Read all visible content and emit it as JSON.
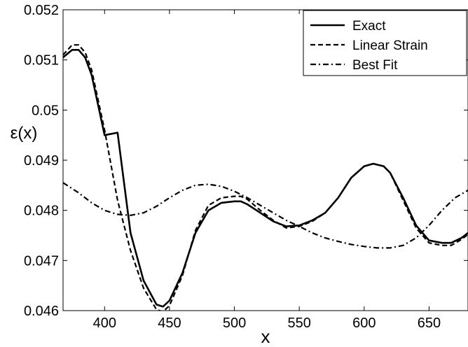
{
  "chart_data": {
    "type": "line",
    "xlabel": "x",
    "ylabel": "ε(x)",
    "xlim": [
      368,
      680
    ],
    "ylim": [
      0.046,
      0.052
    ],
    "x_ticks": [
      400,
      450,
      500,
      550,
      600,
      650
    ],
    "y_ticks": [
      0.046,
      0.047,
      0.048,
      0.049,
      0.05,
      0.051,
      0.052
    ],
    "grid": false,
    "legend_position": "top-right",
    "series": [
      {
        "name": "Exact",
        "style": "solid",
        "x": [
          368,
          375,
          380,
          385,
          390,
          400,
          410,
          420,
          430,
          440,
          445,
          450,
          460,
          470,
          480,
          490,
          500,
          505,
          510,
          520,
          530,
          540,
          550,
          560,
          570,
          580,
          590,
          600,
          607,
          615,
          620,
          630,
          640,
          650,
          660,
          667,
          675,
          680
        ],
        "y": [
          0.05105,
          0.0512,
          0.0512,
          0.05105,
          0.0507,
          0.0495,
          0.04955,
          0.04755,
          0.0466,
          0.04612,
          0.04608,
          0.0462,
          0.04675,
          0.04755,
          0.048,
          0.04815,
          0.04818,
          0.04818,
          0.04812,
          0.04795,
          0.04778,
          0.04768,
          0.0477,
          0.0478,
          0.04795,
          0.04825,
          0.04865,
          0.04888,
          0.04893,
          0.04888,
          0.04875,
          0.04825,
          0.0477,
          0.0474,
          0.04735,
          0.04735,
          0.04745,
          0.04755
        ]
      },
      {
        "name": "Linear Strain",
        "style": "dashed",
        "x": [
          368,
          375,
          380,
          385,
          390,
          400,
          410,
          420,
          430,
          440,
          445,
          450,
          460,
          470,
          480,
          490,
          500,
          505,
          510,
          520,
          530,
          540,
          550,
          560,
          570,
          580,
          590,
          600,
          607,
          615,
          620,
          630,
          640,
          650,
          660,
          667,
          675,
          680
        ],
        "y": [
          0.0511,
          0.0513,
          0.0513,
          0.05115,
          0.0508,
          0.0496,
          0.0482,
          0.0472,
          0.04645,
          0.04602,
          0.04598,
          0.0461,
          0.0467,
          0.0476,
          0.0481,
          0.04825,
          0.04828,
          0.04828,
          0.04822,
          0.048,
          0.0478,
          0.04765,
          0.04768,
          0.04778,
          0.04795,
          0.04825,
          0.04865,
          0.04888,
          0.04893,
          0.04888,
          0.04875,
          0.0482,
          0.04765,
          0.04735,
          0.0473,
          0.0473,
          0.04742,
          0.04752
        ]
      },
      {
        "name": "Best Fit",
        "style": "dashdot",
        "x": [
          368,
          380,
          390,
          400,
          410,
          420,
          430,
          440,
          450,
          460,
          470,
          480,
          490,
          500,
          510,
          520,
          530,
          540,
          550,
          560,
          570,
          580,
          590,
          600,
          610,
          620,
          630,
          640,
          650,
          660,
          670,
          680
        ],
        "y": [
          0.04855,
          0.04835,
          0.04815,
          0.048,
          0.04792,
          0.0479,
          0.04795,
          0.04808,
          0.04825,
          0.0484,
          0.0485,
          0.04852,
          0.04848,
          0.04838,
          0.04825,
          0.0481,
          0.04795,
          0.0478,
          0.04768,
          0.04755,
          0.04745,
          0.04738,
          0.04732,
          0.04728,
          0.04725,
          0.04725,
          0.0473,
          0.04745,
          0.0477,
          0.048,
          0.04825,
          0.0484
        ]
      }
    ]
  }
}
